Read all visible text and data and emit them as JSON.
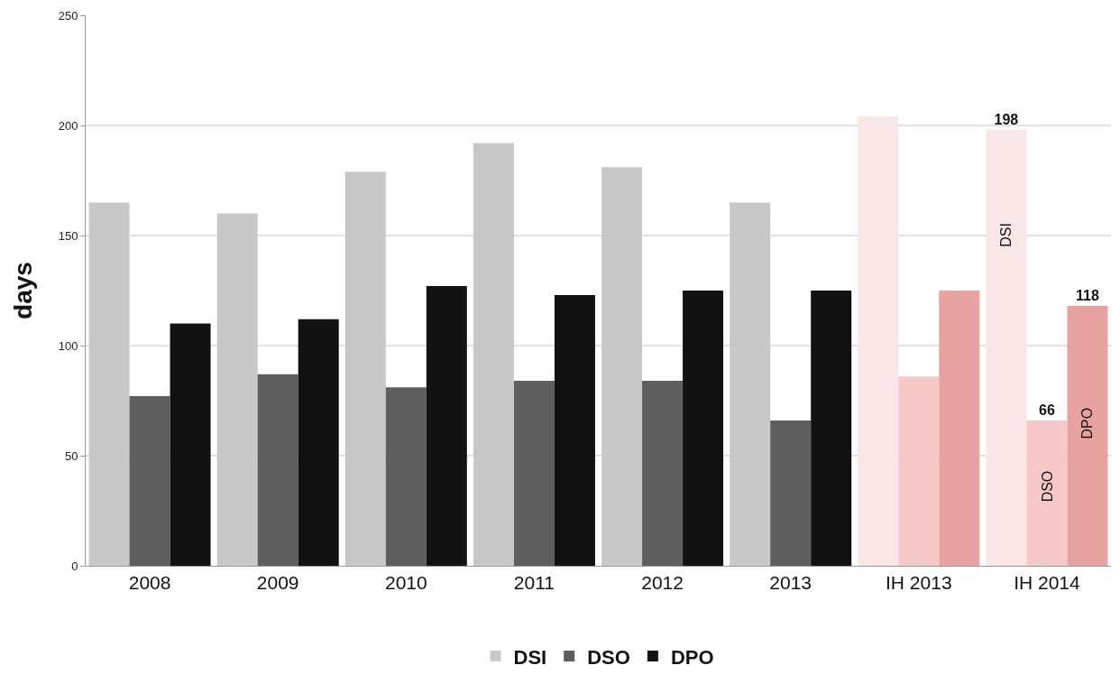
{
  "chart_data": {
    "type": "bar",
    "ylabel": "days",
    "categories": [
      "2008",
      "2009",
      "2010",
      "2011",
      "2012",
      "2013",
      "IH 2013",
      "IH 2014"
    ],
    "series": [
      {
        "name": "DSI",
        "color": "#c8c8c8",
        "colors": [
          "#c8c8c8",
          "#c8c8c8",
          "#c8c8c8",
          "#c8c8c8",
          "#c8c8c8",
          "#c8c8c8",
          "#f9e6e6",
          "#f9e6e6"
        ],
        "values": [
          165,
          160,
          179,
          192,
          181,
          165,
          204,
          198
        ],
        "value_labels": [
          null,
          null,
          null,
          null,
          null,
          null,
          null,
          "198"
        ]
      },
      {
        "name": "DSO",
        "color": "#5e5e5e",
        "colors": [
          "#5e5e5e",
          "#5e5e5e",
          "#5e5e5e",
          "#5e5e5e",
          "#5e5e5e",
          "#5e5e5e",
          "#f6c8c8",
          "#f6c8c8"
        ],
        "values": [
          77,
          87,
          81,
          84,
          84,
          66,
          86,
          66
        ],
        "value_labels": [
          null,
          null,
          null,
          null,
          null,
          null,
          null,
          "66"
        ]
      },
      {
        "name": "DPO",
        "color": "#121212",
        "colors": [
          "#121212",
          "#121212",
          "#121212",
          "#121212",
          "#121212",
          "#121212",
          "#e9a2a2",
          "#e9a2a2"
        ],
        "values": [
          110,
          112,
          127,
          123,
          125,
          125,
          125,
          118
        ],
        "value_labels": [
          null,
          null,
          null,
          null,
          null,
          null,
          null,
          "118"
        ]
      }
    ],
    "annotations": [
      "DSI",
      "DSO",
      "DPO"
    ],
    "ylim": [
      0,
      250
    ],
    "yticks": [
      0,
      50,
      100,
      150,
      200,
      250
    ],
    "grid": "y",
    "legend": "bottom"
  }
}
